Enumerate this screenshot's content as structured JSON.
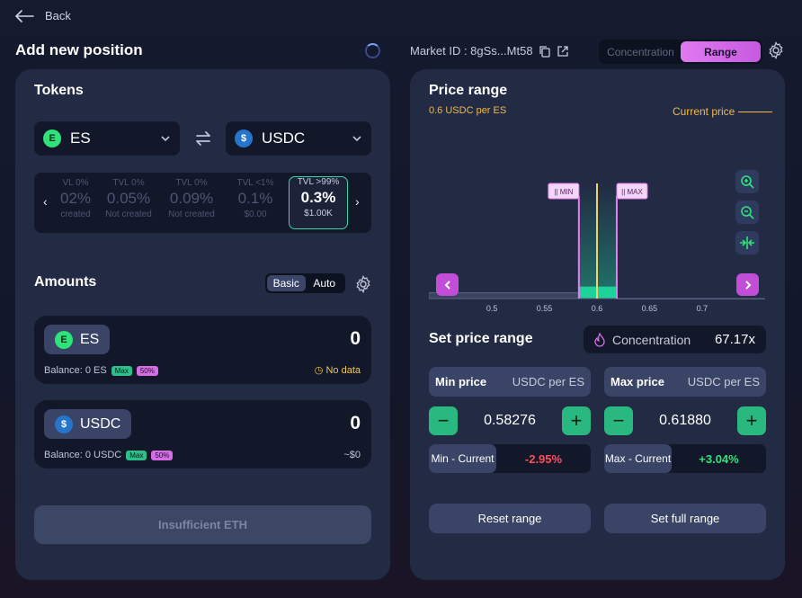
{
  "nav": {
    "back_label": "Back"
  },
  "page_title": "Add new position",
  "market": {
    "label": "Market ID : 8gSs...Mt58"
  },
  "mode_toggle": {
    "options": [
      "Concentration",
      "Range"
    ],
    "active": "Range"
  },
  "tokens": {
    "heading": "Tokens",
    "token_a": "ES",
    "token_b": "USDC",
    "fee_tiers": [
      {
        "tvl": "VL 0%",
        "fee": "02%",
        "status": "created"
      },
      {
        "tvl": "TVL 0%",
        "fee": "0.05%",
        "status": "Not created"
      },
      {
        "tvl": "TVL 0%",
        "fee": "0.09%",
        "status": "Not created"
      },
      {
        "tvl": "TVL <1%",
        "fee": "0.1%",
        "status": "$0.00"
      },
      {
        "tvl": "TVL >99%",
        "fee": "0.3%",
        "status": "$1.00K"
      }
    ],
    "selected_tier_index": 4
  },
  "amounts": {
    "heading": "Amounts",
    "modes": [
      "Basic",
      "Auto"
    ],
    "active_mode": "Basic",
    "rows": [
      {
        "token": "ES",
        "value": "0",
        "balance": "Balance: 0 ES",
        "max": "Max",
        "half": "50%",
        "aside": "No data"
      },
      {
        "token": "USDC",
        "value": "0",
        "balance": "Balance: 0 USDC",
        "max": "Max",
        "half": "50%",
        "aside": "~$0"
      }
    ],
    "submit_label": "Insufficient ETH"
  },
  "price_range": {
    "heading": "Price range",
    "subtitle": "0.6 USDC per ES",
    "current_price_label": "Current price",
    "min_tag": "MIN",
    "max_tag": "MAX"
  },
  "chart_data": {
    "type": "area",
    "x_ticks": [
      "0.5",
      "0.55",
      "0.6",
      "0.65",
      "0.7"
    ],
    "xlim": [
      0.44,
      0.76
    ],
    "current_price": 0.6,
    "min_price": 0.58276,
    "max_price": 0.6188,
    "liquidity": [
      {
        "x0": 0.44,
        "x1": 0.5825,
        "level": 0.05
      },
      {
        "x0": 0.5825,
        "x1": 0.6,
        "level": 0.1
      },
      {
        "x0": 0.6,
        "x1": 0.6188,
        "level": 0.1
      },
      {
        "x0": 0.6188,
        "x1": 0.76,
        "level": 0.0
      }
    ],
    "colors": {
      "range_fill": "#1fd19a",
      "min_max_line": "#e77cf2",
      "current_line": "#f2d36b",
      "base": "#5a6380"
    }
  },
  "set_price_range": {
    "heading": "Set price range",
    "concentration_label": "Concentration",
    "concentration_value": "67.17x",
    "min": {
      "label": "Min price",
      "unit": "USDC per ES",
      "value": "0.58276",
      "diff_label": "Min - Current",
      "diff": "-2.95%"
    },
    "max": {
      "label": "Max price",
      "unit": "USDC per ES",
      "value": "0.61880",
      "diff_label": "Max - Current",
      "diff": "+3.04%"
    },
    "reset_label": "Reset range",
    "full_label": "Set full range"
  },
  "colors": {
    "accent": "#d56ee6",
    "positive": "#2ee37a",
    "negative": "#ff4d5e",
    "warning": "#f2c94c"
  }
}
